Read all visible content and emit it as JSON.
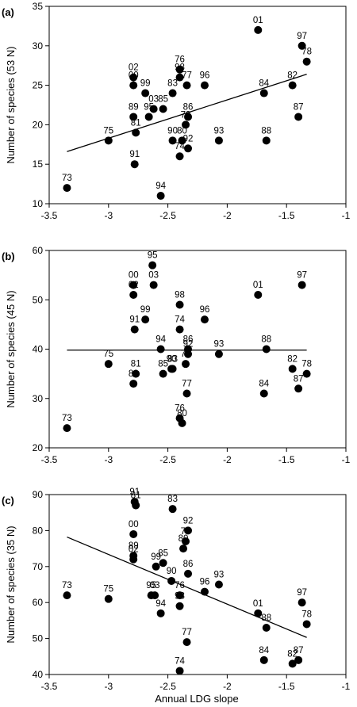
{
  "figure": {
    "xlabel": "Annual LDG slope"
  },
  "chart_data": [
    {
      "type": "scatter",
      "panel_label": "(a)",
      "ylabel": "Number of species (53 N)",
      "xlim": [
        -3.5,
        -1
      ],
      "ylim": [
        10,
        35
      ],
      "xticks": [
        "-3.5",
        "-3",
        "-2.5",
        "-2",
        "-1.5",
        "-1"
      ],
      "yticks": [
        "10",
        "15",
        "20",
        "25",
        "30",
        "35"
      ],
      "trendline": {
        "x": [
          -3.35,
          -1.33
        ],
        "y": [
          16.6,
          26.4
        ]
      },
      "points": [
        {
          "label": "73",
          "x": -3.35,
          "y": 12
        },
        {
          "label": "75",
          "x": -3.0,
          "y": 18
        },
        {
          "label": "02",
          "x": -2.79,
          "y": 26
        },
        {
          "label": "00",
          "x": -2.79,
          "y": 25
        },
        {
          "label": "89",
          "x": -2.79,
          "y": 21
        },
        {
          "label": "81",
          "x": -2.77,
          "y": 19
        },
        {
          "label": "91",
          "x": -2.78,
          "y": 15
        },
        {
          "label": "99",
          "x": -2.69,
          "y": 24
        },
        {
          "label": "95",
          "x": -2.66,
          "y": 21
        },
        {
          "label": "03",
          "x": -2.62,
          "y": 22
        },
        {
          "label": "85",
          "x": -2.54,
          "y": 22
        },
        {
          "label": "83",
          "x": -2.46,
          "y": 24
        },
        {
          "label": "90",
          "x": -2.46,
          "y": 18
        },
        {
          "label": "94",
          "x": -2.56,
          "y": 11
        },
        {
          "label": "76",
          "x": -2.4,
          "y": 27
        },
        {
          "label": "98",
          "x": -2.4,
          "y": 26
        },
        {
          "label": "80",
          "x": -2.38,
          "y": 18
        },
        {
          "label": "74",
          "x": -2.4,
          "y": 16
        },
        {
          "label": "77",
          "x": -2.34,
          "y": 25
        },
        {
          "label": "86",
          "x": -2.33,
          "y": 21
        },
        {
          "label": "79",
          "x": -2.35,
          "y": 20
        },
        {
          "label": "92",
          "x": -2.33,
          "y": 17
        },
        {
          "label": "96",
          "x": -2.19,
          "y": 25
        },
        {
          "label": "93",
          "x": -2.07,
          "y": 18
        },
        {
          "label": "01",
          "x": -1.74,
          "y": 32
        },
        {
          "label": "84",
          "x": -1.69,
          "y": 24
        },
        {
          "label": "88",
          "x": -1.67,
          "y": 18
        },
        {
          "label": "82",
          "x": -1.45,
          "y": 25
        },
        {
          "label": "87",
          "x": -1.4,
          "y": 21
        },
        {
          "label": "97",
          "x": -1.37,
          "y": 30
        },
        {
          "label": "78",
          "x": -1.33,
          "y": 28
        }
      ]
    },
    {
      "type": "scatter",
      "panel_label": "(b)",
      "ylabel": "Number of species (45 N)",
      "xlim": [
        -3.5,
        -1
      ],
      "ylim": [
        20,
        60
      ],
      "xticks": [
        "-3.5",
        "-3",
        "-2.5",
        "-2",
        "-1.5",
        "-1"
      ],
      "yticks": [
        "20",
        "30",
        "40",
        "50",
        "60"
      ],
      "trendline": {
        "x": [
          -3.35,
          -1.33
        ],
        "y": [
          39.8,
          39.8
        ]
      },
      "points": [
        {
          "label": "73",
          "x": -3.35,
          "y": 24
        },
        {
          "label": "75",
          "x": -3.0,
          "y": 37
        },
        {
          "label": "00",
          "x": -2.79,
          "y": 53
        },
        {
          "label": "02",
          "x": -2.79,
          "y": 51
        },
        {
          "label": "91",
          "x": -2.78,
          "y": 44
        },
        {
          "label": "81",
          "x": -2.77,
          "y": 35
        },
        {
          "label": "89",
          "x": -2.79,
          "y": 33
        },
        {
          "label": "95",
          "x": -2.63,
          "y": 57
        },
        {
          "label": "03",
          "x": -2.62,
          "y": 53
        },
        {
          "label": "99",
          "x": -2.69,
          "y": 46
        },
        {
          "label": "94",
          "x": -2.56,
          "y": 40
        },
        {
          "label": "85",
          "x": -2.54,
          "y": 35
        },
        {
          "label": "90",
          "x": -2.47,
          "y": 36
        },
        {
          "label": "83",
          "x": -2.46,
          "y": 36
        },
        {
          "label": "98",
          "x": -2.4,
          "y": 49
        },
        {
          "label": "74",
          "x": -2.4,
          "y": 44
        },
        {
          "label": "86",
          "x": -2.33,
          "y": 40
        },
        {
          "label": "92",
          "x": -2.33,
          "y": 39
        },
        {
          "label": "79",
          "x": -2.35,
          "y": 37
        },
        {
          "label": "77",
          "x": -2.34,
          "y": 31
        },
        {
          "label": "76",
          "x": -2.4,
          "y": 26
        },
        {
          "label": "80",
          "x": -2.38,
          "y": 25
        },
        {
          "label": "96",
          "x": -2.19,
          "y": 46
        },
        {
          "label": "93",
          "x": -2.07,
          "y": 39
        },
        {
          "label": "01",
          "x": -1.74,
          "y": 51
        },
        {
          "label": "88",
          "x": -1.67,
          "y": 40
        },
        {
          "label": "84",
          "x": -1.69,
          "y": 31
        },
        {
          "label": "97",
          "x": -1.37,
          "y": 53
        },
        {
          "label": "82",
          "x": -1.45,
          "y": 36
        },
        {
          "label": "78",
          "x": -1.33,
          "y": 35
        },
        {
          "label": "87",
          "x": -1.4,
          "y": 32
        }
      ]
    },
    {
      "type": "scatter",
      "panel_label": "(c)",
      "ylabel": "Number of species (35 N)",
      "xlim": [
        -3.5,
        -1
      ],
      "ylim": [
        40,
        90
      ],
      "xticks": [
        "-3.5",
        "-3",
        "-2.5",
        "-2",
        "-1.5",
        "-1"
      ],
      "yticks": [
        "40",
        "50",
        "60",
        "70",
        "80",
        "90"
      ],
      "trendline": {
        "x": [
          -3.35,
          -1.33
        ],
        "y": [
          78.2,
          50.3
        ]
      },
      "points": [
        {
          "label": "73",
          "x": -3.35,
          "y": 62
        },
        {
          "label": "75",
          "x": -3.0,
          "y": 61
        },
        {
          "label": "91",
          "x": -2.78,
          "y": 88
        },
        {
          "label": "81",
          "x": -2.77,
          "y": 87
        },
        {
          "label": "00",
          "x": -2.79,
          "y": 79
        },
        {
          "label": "89",
          "x": -2.79,
          "y": 73
        },
        {
          "label": "02",
          "x": -2.79,
          "y": 72
        },
        {
          "label": "83",
          "x": -2.46,
          "y": 86
        },
        {
          "label": "99",
          "x": -2.6,
          "y": 70
        },
        {
          "label": "85",
          "x": -2.54,
          "y": 71
        },
        {
          "label": "95",
          "x": -2.64,
          "y": 62
        },
        {
          "label": "03",
          "x": -2.61,
          "y": 62
        },
        {
          "label": "94",
          "x": -2.56,
          "y": 57
        },
        {
          "label": "90",
          "x": -2.47,
          "y": 66
        },
        {
          "label": "76",
          "x": -2.4,
          "y": 62
        },
        {
          "label": "98",
          "x": -2.4,
          "y": 59
        },
        {
          "label": "92",
          "x": -2.33,
          "y": 80
        },
        {
          "label": "80",
          "x": -2.37,
          "y": 75
        },
        {
          "label": "79",
          "x": -2.35,
          "y": 77
        },
        {
          "label": "86",
          "x": -2.33,
          "y": 68
        },
        {
          "label": "77",
          "x": -2.34,
          "y": 49
        },
        {
          "label": "74",
          "x": -2.4,
          "y": 41
        },
        {
          "label": "96",
          "x": -2.19,
          "y": 63
        },
        {
          "label": "93",
          "x": -2.07,
          "y": 65
        },
        {
          "label": "01",
          "x": -1.74,
          "y": 57
        },
        {
          "label": "88",
          "x": -1.67,
          "y": 53
        },
        {
          "label": "84",
          "x": -1.69,
          "y": 44
        },
        {
          "label": "97",
          "x": -1.37,
          "y": 60
        },
        {
          "label": "78",
          "x": -1.33,
          "y": 54
        },
        {
          "label": "82",
          "x": -1.45,
          "y": 43
        },
        {
          "label": "87",
          "x": -1.4,
          "y": 44
        }
      ]
    }
  ]
}
